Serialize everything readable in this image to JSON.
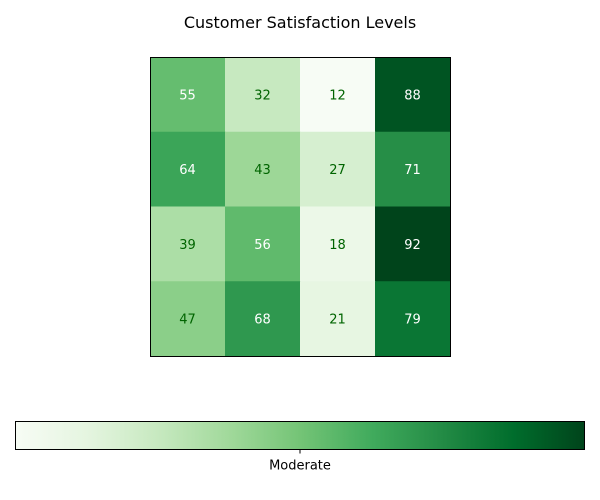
{
  "chart_data": {
    "type": "heatmap",
    "title": "Customer Satisfaction Levels",
    "rows": 4,
    "cols": 4,
    "values": [
      [
        55,
        32,
        12,
        88
      ],
      [
        64,
        43,
        27,
        71
      ],
      [
        39,
        56,
        18,
        92
      ],
      [
        47,
        68,
        21,
        79
      ]
    ],
    "value_range": [
      12,
      92
    ],
    "colormap": "Greens",
    "colormap_stops": [
      "#f7fcf5",
      "#e5f5e0",
      "#c7e9c0",
      "#a1d99b",
      "#74c476",
      "#41ab5d",
      "#238b45",
      "#006d2c",
      "#00441b"
    ],
    "label_color_light": "#ffffff",
    "label_color_dark": "#006400",
    "colorbar": {
      "orientation": "horizontal",
      "placement": "bottom",
      "tick_labels": [
        "Moderate"
      ],
      "tick_values": [
        52
      ]
    }
  }
}
